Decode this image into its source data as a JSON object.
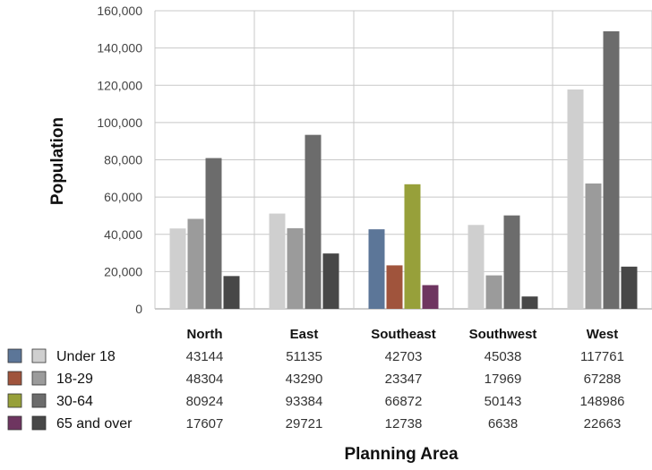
{
  "chart_data": {
    "type": "bar",
    "xlabel": "Planning Area",
    "ylabel": "Population",
    "ylim": [
      0,
      160000
    ],
    "y_ticks": [
      "0",
      "20,000",
      "40,000",
      "60,000",
      "80,000",
      "100,000",
      "120,000",
      "140,000",
      "160,000"
    ],
    "y_tick_values": [
      0,
      20000,
      40000,
      60000,
      80000,
      100000,
      120000,
      140000,
      160000
    ],
    "grid": true,
    "legend_placement": "bottom-left table",
    "categories": [
      "North",
      "East",
      "Southeast",
      "Southwest",
      "West"
    ],
    "highlighted_category": "Southeast",
    "series": [
      {
        "name": "Under 18",
        "values": [
          43144,
          51135,
          42703,
          45038,
          117761
        ],
        "color": "#cfcfcf",
        "highlight_color": "#5c7698"
      },
      {
        "name": "18-29",
        "values": [
          48304,
          43290,
          23347,
          17969,
          67288
        ],
        "color": "#9b9b9b",
        "highlight_color": "#a0543c"
      },
      {
        "name": "30-64",
        "values": [
          80924,
          93384,
          66872,
          50143,
          148986
        ],
        "color": "#6c6c6c",
        "highlight_color": "#97a03a"
      },
      {
        "name": "65 and over",
        "values": [
          17607,
          29721,
          12738,
          6638,
          22663
        ],
        "color": "#474747",
        "highlight_color": "#6e3560"
      }
    ]
  }
}
